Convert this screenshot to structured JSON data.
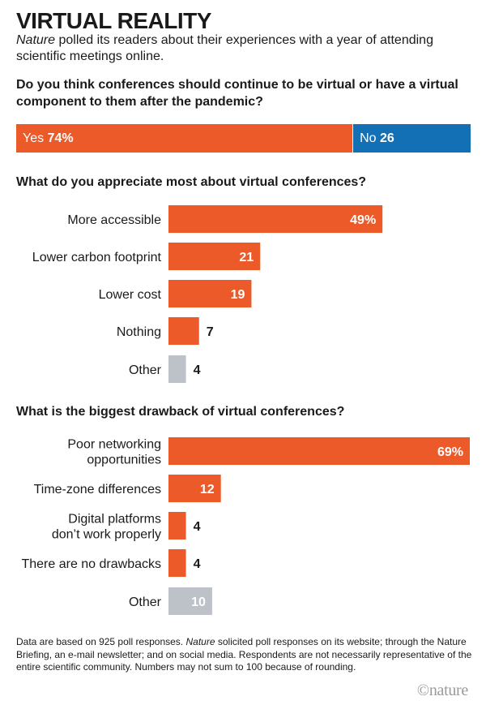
{
  "title": "VIRTUAL REALITY",
  "subtitle_italic": "Nature",
  "subtitle_rest": " polled its readers about their experiences with a year of attending scientific meetings online.",
  "colors": {
    "orange": "#EB5A28",
    "blue": "#1470B4",
    "grey": "#BCC2C8",
    "text": "#1a1a1a"
  },
  "chart_data": [
    {
      "type": "bar",
      "orientation": "horizontal-stacked",
      "title": "Do you think conferences should continue to be virtual or have a virtual component to them after the pandemic?",
      "categories": [
        "Yes",
        "No"
      ],
      "values": [
        74,
        26
      ],
      "value_labels": [
        "74%",
        "26"
      ],
      "colors": [
        "#EB5A28",
        "#1470B4"
      ]
    },
    {
      "type": "bar",
      "orientation": "horizontal",
      "title": "What do you appreciate most about virtual conferences?",
      "categories": [
        [
          "More accessible"
        ],
        [
          "Lower carbon footprint"
        ],
        [
          "Lower cost"
        ],
        [
          "Nothing"
        ],
        [
          "Other"
        ]
      ],
      "values": [
        49,
        21,
        19,
        7,
        4
      ],
      "value_labels": [
        "49%",
        "21",
        "19",
        "7",
        "4"
      ],
      "colors": [
        "#EB5A28",
        "#EB5A28",
        "#EB5A28",
        "#EB5A28",
        "#BCC2C8"
      ],
      "xlim": [
        0,
        69
      ]
    },
    {
      "type": "bar",
      "orientation": "horizontal",
      "title": "What is the biggest drawback of virtual conferences?",
      "categories": [
        [
          "Poor networking",
          "opportunities"
        ],
        [
          "Time-zone differences"
        ],
        [
          "Digital platforms",
          "don’t work properly"
        ],
        [
          "There are no drawbacks"
        ],
        [
          "Other"
        ]
      ],
      "values": [
        69,
        12,
        4,
        4,
        10
      ],
      "value_labels": [
        "69%",
        "12",
        "4",
        "4",
        "10"
      ],
      "colors": [
        "#EB5A28",
        "#EB5A28",
        "#EB5A28",
        "#EB5A28",
        "#BCC2C8"
      ],
      "xlim": [
        0,
        69
      ]
    }
  ],
  "footnote_a": "Data are based on 925 poll responses. ",
  "footnote_italic": "Nature",
  "footnote_b": " solicited poll responses on its website; through the Nature Briefing, an e-mail newsletter; and on social media. Respondents are not necessarily representative of the entire scientific community. Numbers may not sum to 100 because of rounding.",
  "logo": "©nature"
}
